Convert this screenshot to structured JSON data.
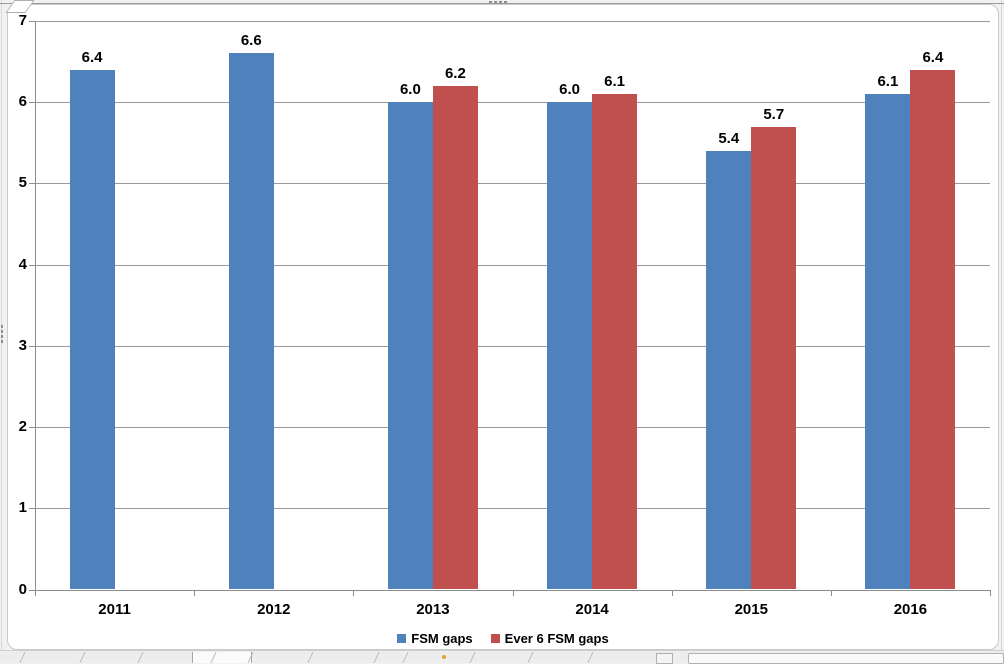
{
  "chart_data": {
    "type": "bar",
    "categories": [
      "2011",
      "2012",
      "2013",
      "2014",
      "2015",
      "2016"
    ],
    "series": [
      {
        "name": "FSM gaps",
        "color": "#4F81BD",
        "values": [
          6.4,
          6.6,
          6.0,
          6.0,
          5.4,
          6.1
        ]
      },
      {
        "name": "Ever 6 FSM gaps",
        "color": "#C0504D",
        "values": [
          null,
          null,
          6.2,
          6.1,
          5.7,
          6.4
        ]
      }
    ],
    "title": "",
    "xlabel": "",
    "ylabel": "",
    "ylim": [
      0,
      7
    ],
    "yticks": [
      0,
      1,
      2,
      3,
      4,
      5,
      6,
      7
    ],
    "grid": true,
    "legend_position": "bottom",
    "data_labels": true,
    "data_label_format": "0.0"
  },
  "colors": {
    "series_1": "#4F81BD",
    "series_2": "#C0504D",
    "gridline": "#9A9A9A",
    "axis": "#8C8C8C",
    "text": "#000000"
  }
}
